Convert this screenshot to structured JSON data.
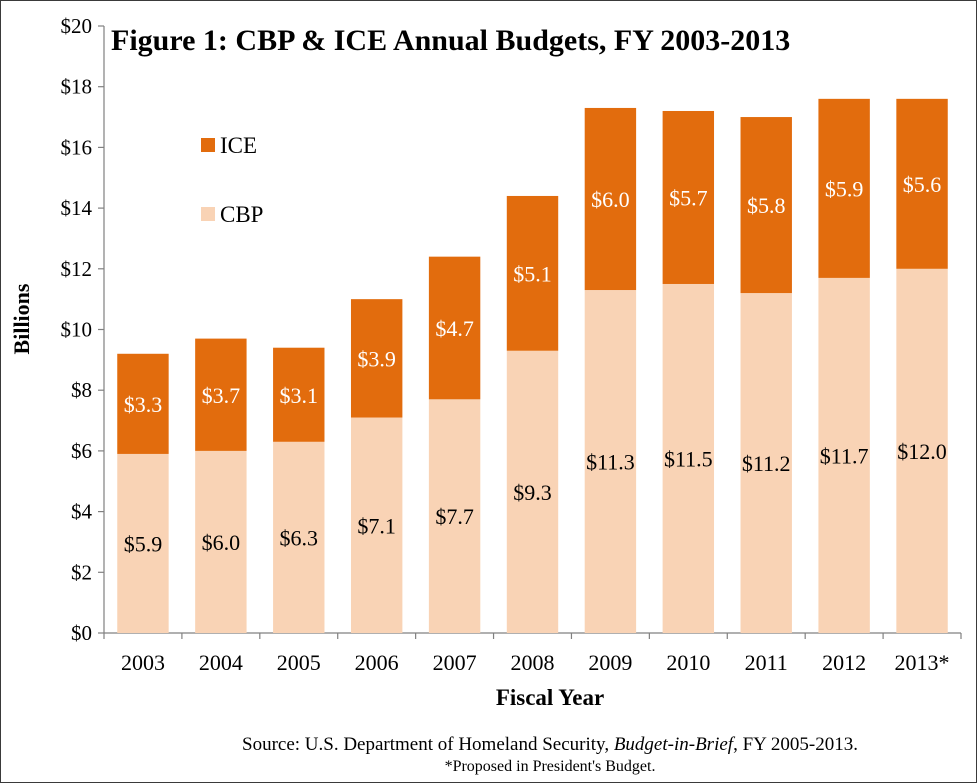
{
  "chart_data": {
    "type": "bar",
    "stacked": true,
    "title": "Figure 1: CBP & ICE Annual Budgets, FY 2003-2013",
    "xlabel": "Fiscal Year",
    "ylabel": "Billions",
    "ylim": [
      0,
      20
    ],
    "yticks": [
      0,
      2,
      4,
      6,
      8,
      10,
      12,
      14,
      16,
      18,
      20
    ],
    "ytick_labels": [
      "$0",
      "$2",
      "$4",
      "$6",
      "$8",
      "$10",
      "$12",
      "$14",
      "$16",
      "$18",
      "$20"
    ],
    "categories": [
      "2003",
      "2004",
      "2005",
      "2006",
      "2007",
      "2008",
      "2009",
      "2010",
      "2011",
      "2012",
      "2013*"
    ],
    "series": [
      {
        "name": "CBP",
        "color": "#f9d3b5",
        "values": [
          5.9,
          6.0,
          6.3,
          7.1,
          7.7,
          9.3,
          11.3,
          11.5,
          11.2,
          11.7,
          12.0
        ],
        "labels": [
          "$5.9",
          "$6.0",
          "$6.3",
          "$7.1",
          "$7.7",
          "$9.3",
          "$11.3",
          "$11.5",
          "$11.2",
          "$11.7",
          "$12.0"
        ],
        "label_color": "#000000"
      },
      {
        "name": "ICE",
        "color": "#e26c0d",
        "values": [
          3.3,
          3.7,
          3.1,
          3.9,
          4.7,
          5.1,
          6.0,
          5.7,
          5.8,
          5.9,
          5.6
        ],
        "labels": [
          "$3.3",
          "$3.7",
          "$3.1",
          "$3.9",
          "$4.7",
          "$5.1",
          "$6.0",
          "$5.7",
          "$5.8",
          "$5.9",
          "$5.6"
        ],
        "label_color": "#ffffff"
      }
    ],
    "legend": {
      "position": "top-left",
      "entries": [
        "ICE",
        "CBP"
      ]
    },
    "grid": false
  },
  "source": {
    "prefix": "Source: U.S. Department of Homeland Security,",
    "italic": "Budget-in-Brief",
    "suffix": ", FY 2005-2013.",
    "note": "*Proposed in President's Budget."
  }
}
